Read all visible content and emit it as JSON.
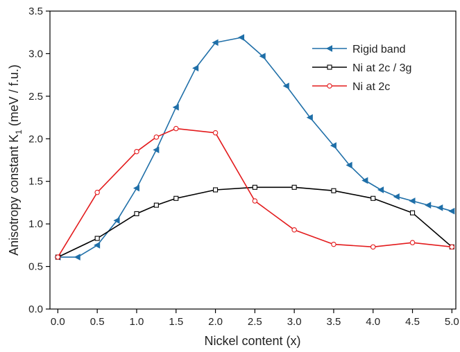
{
  "chart_data": {
    "type": "line",
    "title": "",
    "xlabel": "Nickel content (x)",
    "ylabel_main": "Anisotropy constant K",
    "ylabel_sub": "1",
    "ylabel_unit": " (meV / f.u.)",
    "xlim": [
      -0.1,
      5.05
    ],
    "ylim": [
      0,
      3.5
    ],
    "xticks": [
      "0.0",
      "0.5",
      "1.0",
      "1.5",
      "2.0",
      "2.5",
      "3.0",
      "3.5",
      "4.0",
      "4.5",
      "5.0"
    ],
    "yticks": [
      "0.0",
      "0.5",
      "1.0",
      "1.5",
      "2.0",
      "2.5",
      "3.0",
      "3.5"
    ],
    "grid": false,
    "legend_position": "top-right",
    "series": [
      {
        "name": "Rigid band",
        "color": "#1f6fa8",
        "marker": "triangle-left",
        "x": [
          0.0,
          0.25,
          0.5,
          0.75,
          1.0,
          1.25,
          1.5,
          1.75,
          2.0,
          2.33,
          2.6,
          2.9,
          3.2,
          3.5,
          3.7,
          3.9,
          4.1,
          4.3,
          4.5,
          4.7,
          4.85,
          5.0
        ],
        "y": [
          0.61,
          0.61,
          0.75,
          1.04,
          1.42,
          1.87,
          2.37,
          2.83,
          3.13,
          3.19,
          2.97,
          2.62,
          2.25,
          1.92,
          1.69,
          1.51,
          1.4,
          1.32,
          1.27,
          1.22,
          1.19,
          1.15
        ]
      },
      {
        "name": "Ni at 2c / 3g",
        "color": "#000000",
        "marker": "square",
        "x": [
          0.0,
          0.5,
          1.0,
          1.25,
          1.5,
          2.0,
          2.5,
          3.0,
          3.5,
          4.0,
          4.5,
          5.0
        ],
        "y": [
          0.61,
          0.83,
          1.12,
          1.22,
          1.3,
          1.4,
          1.43,
          1.43,
          1.39,
          1.3,
          1.13,
          0.73
        ]
      },
      {
        "name": "Ni at 2c",
        "color": "#e31a1c",
        "marker": "circle",
        "x": [
          0.0,
          0.5,
          1.0,
          1.25,
          1.5,
          2.0,
          2.5,
          3.0,
          3.5,
          4.0,
          4.5,
          5.0
        ],
        "y": [
          0.61,
          1.37,
          1.85,
          2.02,
          2.12,
          2.07,
          1.27,
          0.93,
          0.76,
          0.73,
          0.78,
          0.73
        ]
      }
    ]
  }
}
